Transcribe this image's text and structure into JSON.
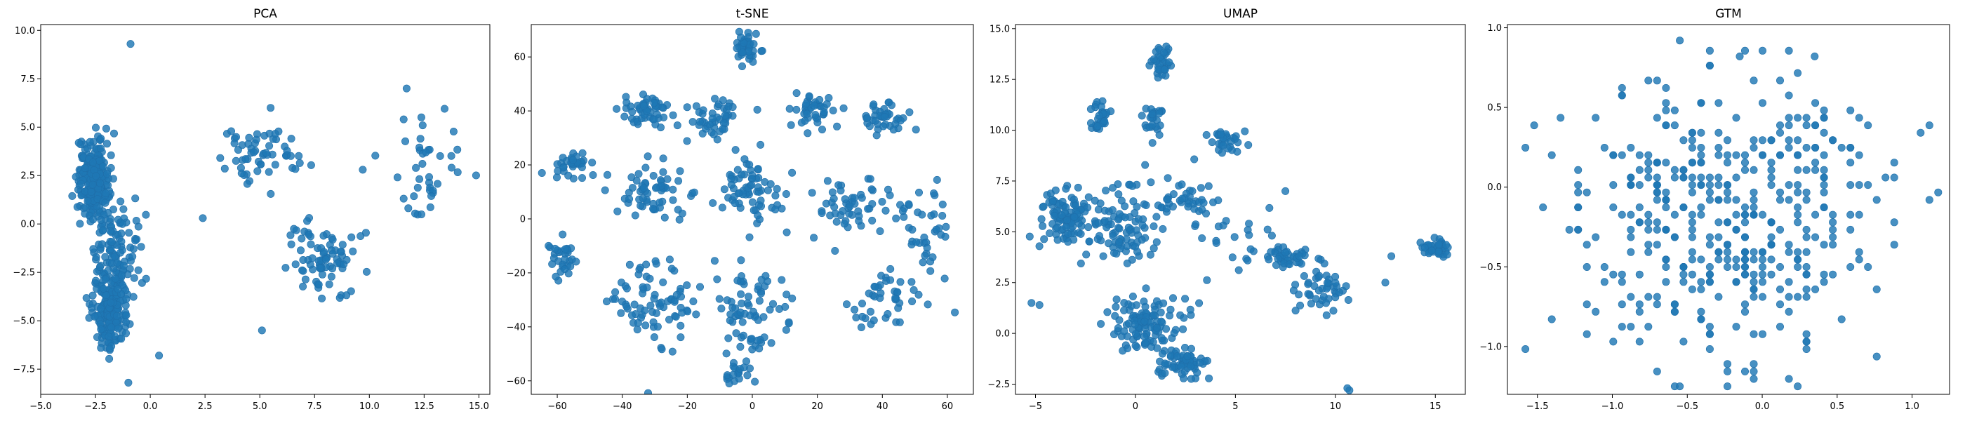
{
  "chart_data": [
    {
      "type": "scatter",
      "title": "PCA",
      "xlabel": "",
      "ylabel": "",
      "xlim": [
        -5.0,
        15.5
      ],
      "ylim": [
        -8.8,
        10.3
      ],
      "xticks": [
        -5.0,
        -2.5,
        0.0,
        2.5,
        5.0,
        7.5,
        10.0,
        12.5,
        15.0
      ],
      "xtick_labels": [
        "−5.0",
        "−2.5",
        "0.0",
        "2.5",
        "5.0",
        "7.5",
        "10.0",
        "12.5",
        "15.0"
      ],
      "yticks": [
        -7.5,
        -5.0,
        -2.5,
        0.0,
        2.5,
        5.0,
        7.5,
        10.0
      ],
      "ytick_labels": [
        "−7.5",
        "−5.0",
        "−2.5",
        "0.0",
        "2.5",
        "5.0",
        "7.5",
        "10.0"
      ],
      "grid": false,
      "color": "#1f77b4",
      "clusters": [
        {
          "center": [
            -2.6,
            2.3
          ],
          "spread": [
            0.5,
            1.4
          ],
          "n": 260
        },
        {
          "center": [
            -1.8,
            -4.2
          ],
          "spread": [
            0.6,
            1.5
          ],
          "n": 200
        },
        {
          "center": [
            -1.6,
            -1.0
          ],
          "spread": [
            0.8,
            1.6
          ],
          "n": 90
        },
        {
          "center": [
            5.0,
            3.5
          ],
          "spread": [
            1.6,
            1.3
          ],
          "n": 60
        },
        {
          "center": [
            7.8,
            -1.7
          ],
          "spread": [
            1.2,
            1.3
          ],
          "n": 80
        },
        {
          "center": [
            12.6,
            2.5
          ],
          "spread": [
            1.2,
            2.0
          ],
          "n": 40
        }
      ],
      "points": [
        [
          -0.9,
          9.3
        ],
        [
          -1.0,
          -8.2
        ],
        [
          5.1,
          -5.5
        ],
        [
          11.7,
          7.0
        ],
        [
          9.7,
          2.8
        ],
        [
          0.4,
          -6.8
        ],
        [
          2.4,
          0.3
        ]
      ]
    },
    {
      "type": "scatter",
      "title": "t-SNE",
      "xlabel": "",
      "ylabel": "",
      "xlim": [
        -68,
        68
      ],
      "ylim": [
        -65,
        72
      ],
      "xticks": [
        -60,
        -40,
        -20,
        0,
        20,
        40,
        60
      ],
      "xtick_labels": [
        "−60",
        "−40",
        "−20",
        "0",
        "20",
        "40",
        "60"
      ],
      "yticks": [
        -60,
        -40,
        -20,
        0,
        20,
        40,
        60
      ],
      "ytick_labels": [
        "−60",
        "−40",
        "−20",
        "0",
        "20",
        "40",
        "60"
      ],
      "grid": false,
      "color": "#1f77b4",
      "clusters": [
        {
          "center": [
            -2,
            63
          ],
          "spread": [
            3,
            4
          ],
          "n": 40
        },
        {
          "center": [
            -56,
            20
          ],
          "spread": [
            4,
            3
          ],
          "n": 35
        },
        {
          "center": [
            -32,
            40
          ],
          "spread": [
            6,
            4
          ],
          "n": 50
        },
        {
          "center": [
            -12,
            38
          ],
          "spread": [
            6,
            6
          ],
          "n": 45
        },
        {
          "center": [
            18,
            40
          ],
          "spread": [
            5,
            5
          ],
          "n": 40
        },
        {
          "center": [
            42,
            38
          ],
          "spread": [
            5,
            5
          ],
          "n": 40
        },
        {
          "center": [
            -30,
            10
          ],
          "spread": [
            8,
            8
          ],
          "n": 60
        },
        {
          "center": [
            0,
            10
          ],
          "spread": [
            8,
            10
          ],
          "n": 70
        },
        {
          "center": [
            30,
            5
          ],
          "spread": [
            8,
            8
          ],
          "n": 50
        },
        {
          "center": [
            52,
            -2
          ],
          "spread": [
            6,
            10
          ],
          "n": 40
        },
        {
          "center": [
            -58,
            -15
          ],
          "spread": [
            3,
            5
          ],
          "n": 30
        },
        {
          "center": [
            -30,
            -30
          ],
          "spread": [
            10,
            12
          ],
          "n": 80
        },
        {
          "center": [
            0,
            -35
          ],
          "spread": [
            7,
            12
          ],
          "n": 70
        },
        {
          "center": [
            40,
            -30
          ],
          "spread": [
            10,
            8
          ],
          "n": 45
        },
        {
          "center": [
            -5,
            -57
          ],
          "spread": [
            3,
            3
          ],
          "n": 20
        }
      ],
      "points": []
    },
    {
      "type": "scatter",
      "title": "UMAP",
      "xlabel": "",
      "ylabel": "",
      "xlim": [
        -6,
        16.5
      ],
      "ylim": [
        -3.0,
        15.2
      ],
      "xticks": [
        -5,
        0,
        5,
        10,
        15
      ],
      "xtick_labels": [
        "−5",
        "0",
        "5",
        "10",
        "15"
      ],
      "yticks": [
        -2.5,
        0.0,
        2.5,
        5.0,
        7.5,
        10.0,
        12.5,
        15.0
      ],
      "ytick_labels": [
        "−2.5",
        "0.0",
        "2.5",
        "5.0",
        "7.5",
        "10.0",
        "12.5",
        "15.0"
      ],
      "grid": false,
      "color": "#1f77b4",
      "clusters": [
        {
          "center": [
            1.3,
            13.5
          ],
          "spread": [
            0.3,
            0.6
          ],
          "n": 35
        },
        {
          "center": [
            -1.8,
            10.6
          ],
          "spread": [
            0.3,
            0.6
          ],
          "n": 30
        },
        {
          "center": [
            0.8,
            10.5
          ],
          "spread": [
            0.5,
            0.6
          ],
          "n": 25
        },
        {
          "center": [
            4.6,
            9.5
          ],
          "spread": [
            0.6,
            0.4
          ],
          "n": 30
        },
        {
          "center": [
            -3.5,
            5.8
          ],
          "spread": [
            1.2,
            1.0
          ],
          "n": 100
        },
        {
          "center": [
            -0.5,
            5.2
          ],
          "spread": [
            1.2,
            1.5
          ],
          "n": 90
        },
        {
          "center": [
            2.5,
            6.5
          ],
          "spread": [
            1.0,
            1.0
          ],
          "n": 40
        },
        {
          "center": [
            0.5,
            0.5
          ],
          "spread": [
            1.3,
            1.0
          ],
          "n": 110
        },
        {
          "center": [
            2.3,
            -1.5
          ],
          "spread": [
            1.0,
            0.5
          ],
          "n": 60
        },
        {
          "center": [
            7.8,
            3.8
          ],
          "spread": [
            0.8,
            0.4
          ],
          "n": 40
        },
        {
          "center": [
            9.3,
            2.3
          ],
          "spread": [
            1.0,
            1.0
          ],
          "n": 45
        },
        {
          "center": [
            15.1,
            4.2
          ],
          "spread": [
            0.6,
            0.3
          ],
          "n": 40
        },
        {
          "center": [
            5.2,
            4.5
          ],
          "spread": [
            1.2,
            1.2
          ],
          "n": 20
        }
      ],
      "points": [
        [
          -5.2,
          1.5
        ],
        [
          -4.8,
          1.4
        ],
        [
          10.7,
          -2.8
        ],
        [
          10.6,
          -2.7
        ],
        [
          12.5,
          2.5
        ],
        [
          12.8,
          3.8
        ],
        [
          7.5,
          7.0
        ]
      ]
    },
    {
      "type": "scatter",
      "title": "GTM",
      "xlabel": "",
      "ylabel": "",
      "xlim": [
        -1.7,
        1.25
      ],
      "ylim": [
        -1.3,
        1.02
      ],
      "xticks": [
        -1.5,
        -1.0,
        -0.5,
        0.0,
        0.5,
        1.0
      ],
      "xtick_labels": [
        "−1.5",
        "−1.0",
        "−0.5",
        "0.0",
        "0.5",
        "1.0"
      ],
      "yticks": [
        -1.0,
        -0.5,
        0.0,
        0.5,
        1.0
      ],
      "ytick_labels": [
        "−1.0",
        "−0.5",
        "0.0",
        "0.5",
        "1.0"
      ],
      "grid": false,
      "color": "#1f77b4",
      "lattice": {
        "x_start": -1.58,
        "x_step": 0.0586,
        "nx": 48,
        "y_start": -1.25,
        "y_step": 0.0468,
        "ny": 46,
        "density_center": [
          -0.2,
          -0.15
        ],
        "n": 430
      },
      "points": [
        [
          -0.55,
          0.92
        ],
        [
          -0.55,
          -1.25
        ],
        [
          0.35,
          0.82
        ],
        [
          -0.15,
          0.82
        ]
      ]
    }
  ]
}
